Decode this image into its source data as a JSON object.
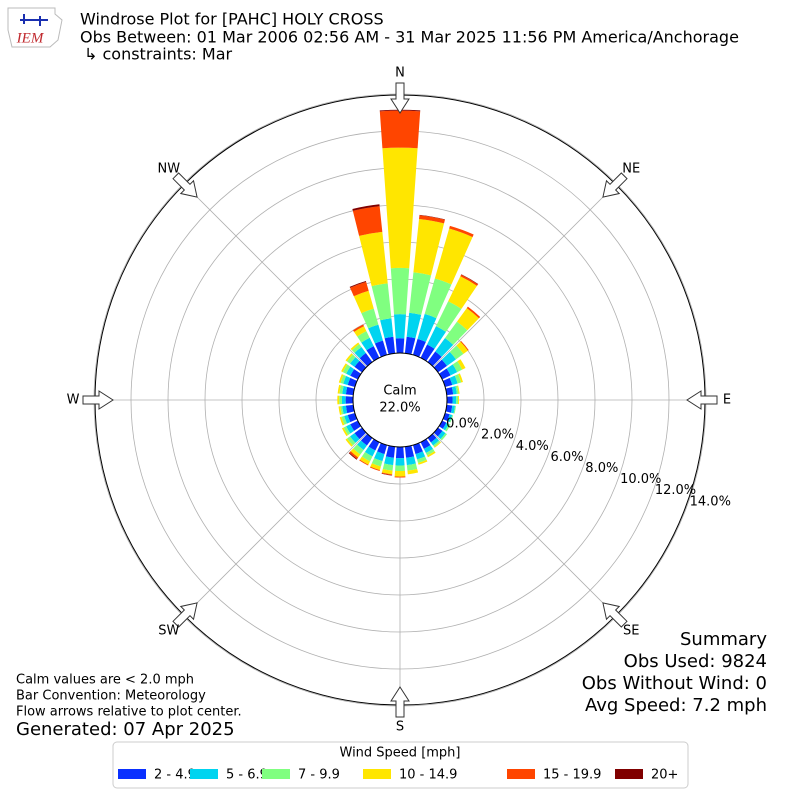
{
  "chart_data": {
    "type": "windrose",
    "title": "Windrose Plot for [PAHC] HOLY CROSS",
    "subtitle": "Obs Between: 01 Mar 2006 02:56 AM - 31 Mar 2025 11:56 PM America/Anchorage",
    "constraints": "↳ constraints: Mar",
    "logo_text": "IEM",
    "direction_labels": [
      "N",
      "NE",
      "E",
      "SE",
      "S",
      "SW",
      "W",
      "NW"
    ],
    "x": [
      0,
      10,
      20,
      30,
      40,
      50,
      60,
      70,
      80,
      90,
      100,
      110,
      120,
      130,
      140,
      150,
      160,
      170,
      180,
      190,
      200,
      210,
      220,
      230,
      240,
      250,
      260,
      270,
      280,
      290,
      300,
      310,
      320,
      330,
      340,
      350
    ],
    "ylim": [
      0,
      14
    ],
    "yticks": [
      {
        "value": 0,
        "label": "0.0%"
      },
      {
        "value": 2,
        "label": "2.0%"
      },
      {
        "value": 4,
        "label": "4.0%"
      },
      {
        "value": 6,
        "label": "6.0%"
      },
      {
        "value": 8,
        "label": "8.0%"
      },
      {
        "value": 10,
        "label": "10.0%"
      },
      {
        "value": 12,
        "label": "12.0%"
      },
      {
        "value": 14,
        "label": "14.0%"
      }
    ],
    "grid": true,
    "calm_label": "Calm",
    "calm_value": 22.0,
    "calm_value_label": "22.0%",
    "legend_title": "Wind Speed [mph]",
    "series": [
      {
        "name": "2 - 4.9",
        "color": "#0a30ff",
        "values": [
          0.8,
          0.9,
          0.9,
          0.8,
          0.7,
          0.6,
          0.5,
          0.4,
          0.35,
          0.3,
          0.3,
          0.25,
          0.25,
          0.3,
          0.3,
          0.4,
          0.5,
          0.6,
          0.6,
          0.6,
          0.5,
          0.5,
          0.5,
          0.5,
          0.45,
          0.4,
          0.4,
          0.4,
          0.4,
          0.4,
          0.45,
          0.5,
          0.6,
          0.7,
          0.8,
          0.9
        ]
      },
      {
        "name": "5 - 6.9",
        "color": "#00d4f0",
        "values": [
          1.3,
          1.3,
          1.4,
          1.1,
          0.9,
          0.6,
          0.4,
          0.3,
          0.2,
          0.2,
          0.15,
          0.15,
          0.15,
          0.2,
          0.2,
          0.25,
          0.3,
          0.4,
          0.4,
          0.4,
          0.4,
          0.35,
          0.3,
          0.3,
          0.25,
          0.2,
          0.2,
          0.2,
          0.2,
          0.25,
          0.25,
          0.3,
          0.4,
          0.5,
          0.9,
          1.0
        ]
      },
      {
        "name": "7 - 9.9",
        "color": "#80ff80",
        "values": [
          2.5,
          2.2,
          2.0,
          1.5,
          1.1,
          0.5,
          0.3,
          0.2,
          0.1,
          0.1,
          0.05,
          0.05,
          0.1,
          0.1,
          0.1,
          0.15,
          0.2,
          0.3,
          0.3,
          0.3,
          0.3,
          0.3,
          0.3,
          0.2,
          0.15,
          0.15,
          0.1,
          0.15,
          0.15,
          0.15,
          0.2,
          0.2,
          0.2,
          0.4,
          0.9,
          1.9
        ]
      },
      {
        "name": "10 - 14.9",
        "color": "#ffe600",
        "values": [
          6.5,
          2.9,
          2.8,
          1.5,
          0.9,
          0.3,
          0.2,
          0.1,
          0.05,
          0.05,
          0,
          0,
          0,
          0,
          0.05,
          0.1,
          0.1,
          0.2,
          0.3,
          0.2,
          0.2,
          0.2,
          0.2,
          0.1,
          0.1,
          0.1,
          0.1,
          0.1,
          0.1,
          0.1,
          0.1,
          0.1,
          0.1,
          0.3,
          1.0,
          2.8
        ]
      },
      {
        "name": "15 - 19.9",
        "color": "#ff4500",
        "values": [
          2.0,
          0.2,
          0.15,
          0.1,
          0.1,
          0.05,
          0,
          0,
          0,
          0,
          0,
          0,
          0,
          0,
          0,
          0,
          0,
          0,
          0.05,
          0.05,
          0.05,
          0.05,
          0.1,
          0,
          0,
          0,
          0,
          0,
          0,
          0,
          0,
          0,
          0,
          0.1,
          0.5,
          1.4
        ]
      },
      {
        "name": "20+",
        "color": "#800000",
        "values": [
          0.05,
          0.02,
          0,
          0.02,
          0,
          0,
          0,
          0,
          0,
          0,
          0,
          0,
          0,
          0,
          0,
          0,
          0,
          0,
          0,
          0.02,
          0,
          0,
          0.05,
          0,
          0,
          0,
          0,
          0,
          0,
          0,
          0,
          0,
          0,
          0,
          0.05,
          0.1
        ]
      }
    ],
    "summary": [
      "Summary",
      "Obs Used: 9824",
      "Obs Without Wind: 0",
      "Avg Speed: 7.2 mph"
    ],
    "notes": [
      "Calm values are < 2.0 mph",
      "Bar Convention: Meteorology",
      "Flow arrows relative to plot center."
    ],
    "generated": "Generated: 07 Apr 2025"
  }
}
